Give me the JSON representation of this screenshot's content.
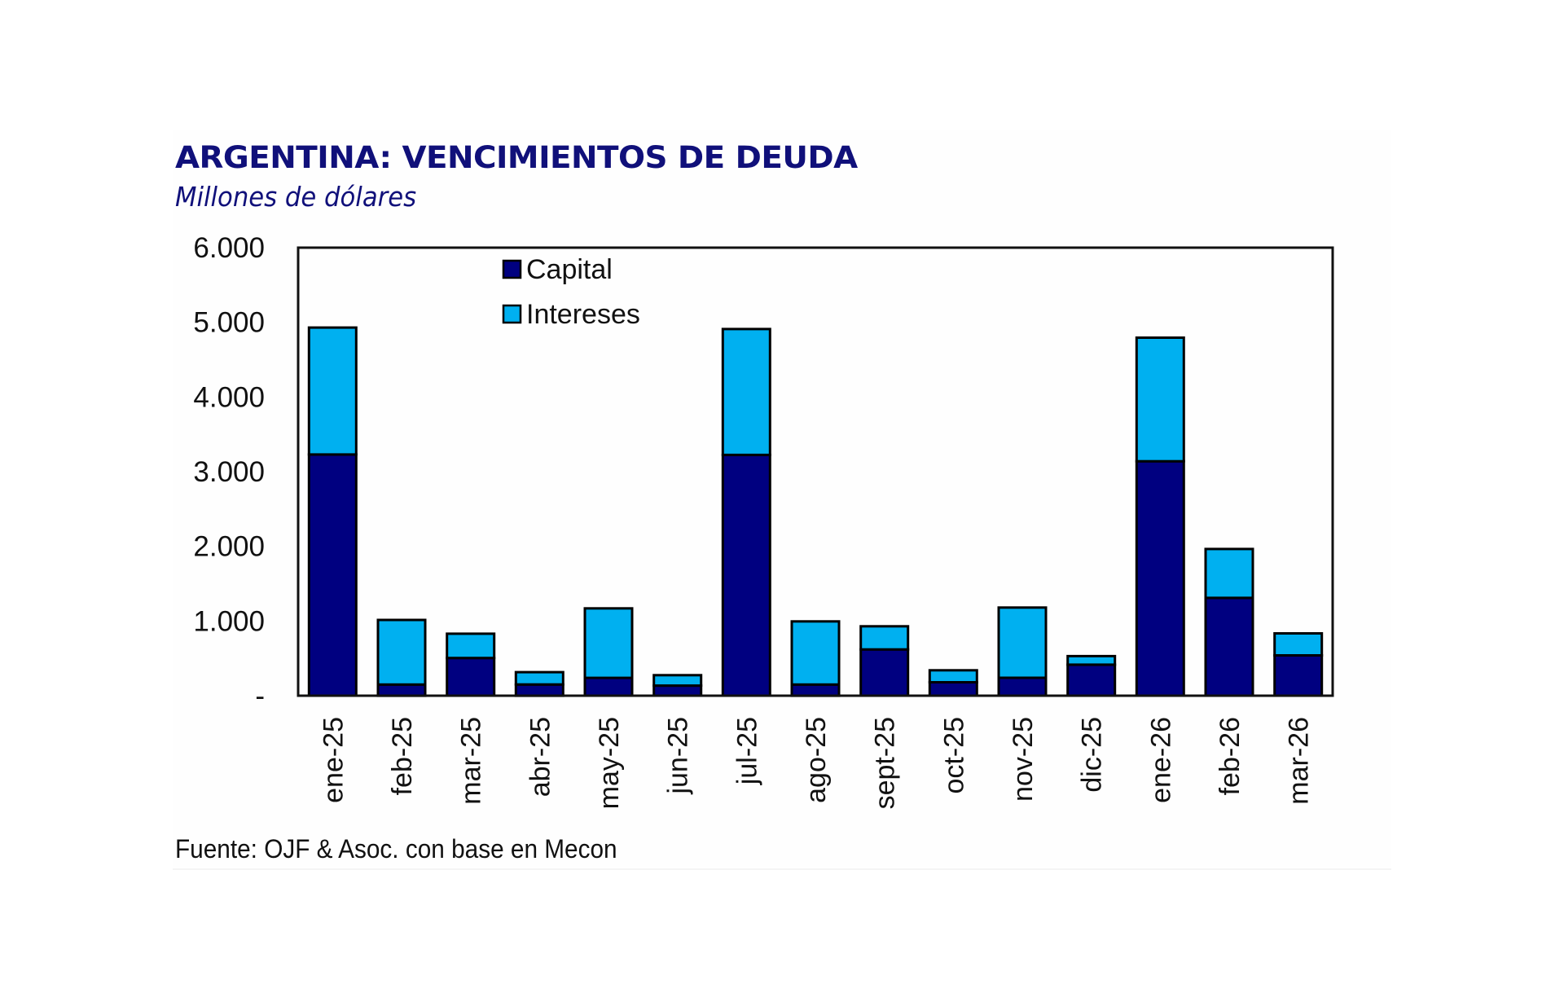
{
  "chart_data": {
    "type": "bar",
    "stacked": true,
    "title": "ARGENTINA: VENCIMIENTOS DE DEUDA",
    "subtitle": "Millones de dólares",
    "source": "Fuente: OJF & Asoc. con base en Mecon",
    "xlabel": "",
    "ylabel": "",
    "ylim": [
      0,
      6000
    ],
    "yticks": [
      0,
      1000,
      2000,
      3000,
      4000,
      5000,
      6000
    ],
    "ytick_labels": [
      "-",
      "1.000",
      "2.000",
      "3.000",
      "4.000",
      "5.000",
      "6.000"
    ],
    "grid": false,
    "legend_position": "top-left",
    "categories": [
      "ene-25",
      "feb-25",
      "mar-25",
      "abr-25",
      "may-25",
      "jun-25",
      "jul-25",
      "ago-25",
      "sept-25",
      "oct-25",
      "nov-25",
      "dic-25",
      "ene-26",
      "feb-26",
      "mar-26"
    ],
    "series": [
      {
        "name": "Capital",
        "color": "#000080",
        "values": [
          3230,
          150,
          505,
          150,
          240,
          135,
          3225,
          150,
          620,
          180,
          240,
          415,
          3140,
          1310,
          540
        ]
      },
      {
        "name": "Intereses",
        "color": "#00B0F0",
        "values": [
          1700,
          865,
          325,
          165,
          930,
          140,
          1685,
          845,
          310,
          160,
          940,
          115,
          1655,
          655,
          295
        ]
      }
    ]
  }
}
